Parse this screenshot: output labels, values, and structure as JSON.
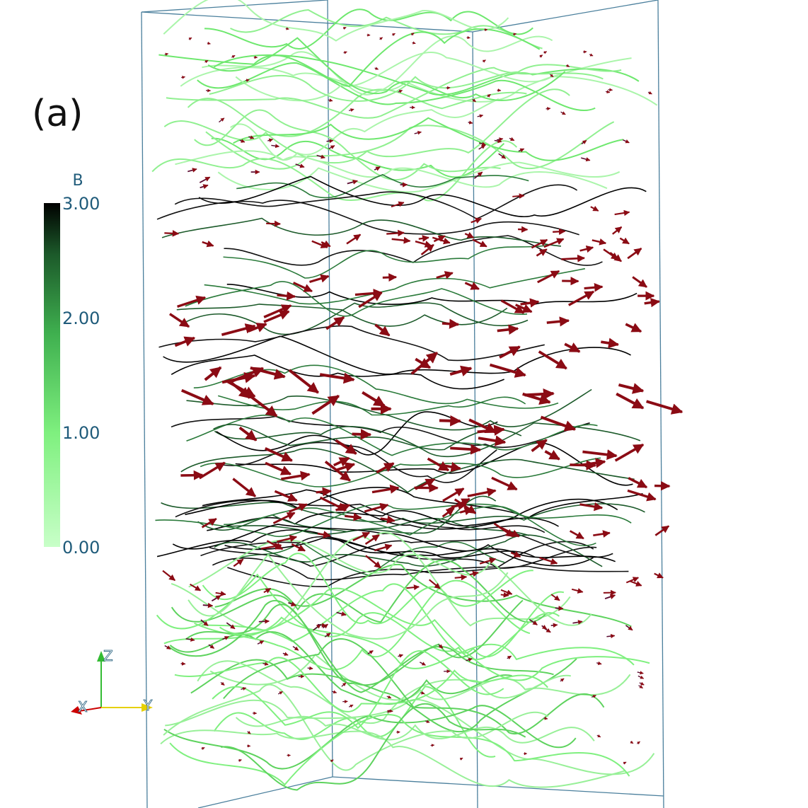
{
  "panel_label": "(a)",
  "colorbar": {
    "title": "B",
    "range": [
      0,
      3
    ],
    "ticks": [
      {
        "value": 3,
        "label": "3.00"
      },
      {
        "value": 2,
        "label": "2.00"
      },
      {
        "value": 1,
        "label": "1.00"
      },
      {
        "value": 0,
        "label": "0.00"
      }
    ]
  },
  "axes_triad": {
    "z": "Z",
    "x": "X",
    "y": "Y"
  }
}
